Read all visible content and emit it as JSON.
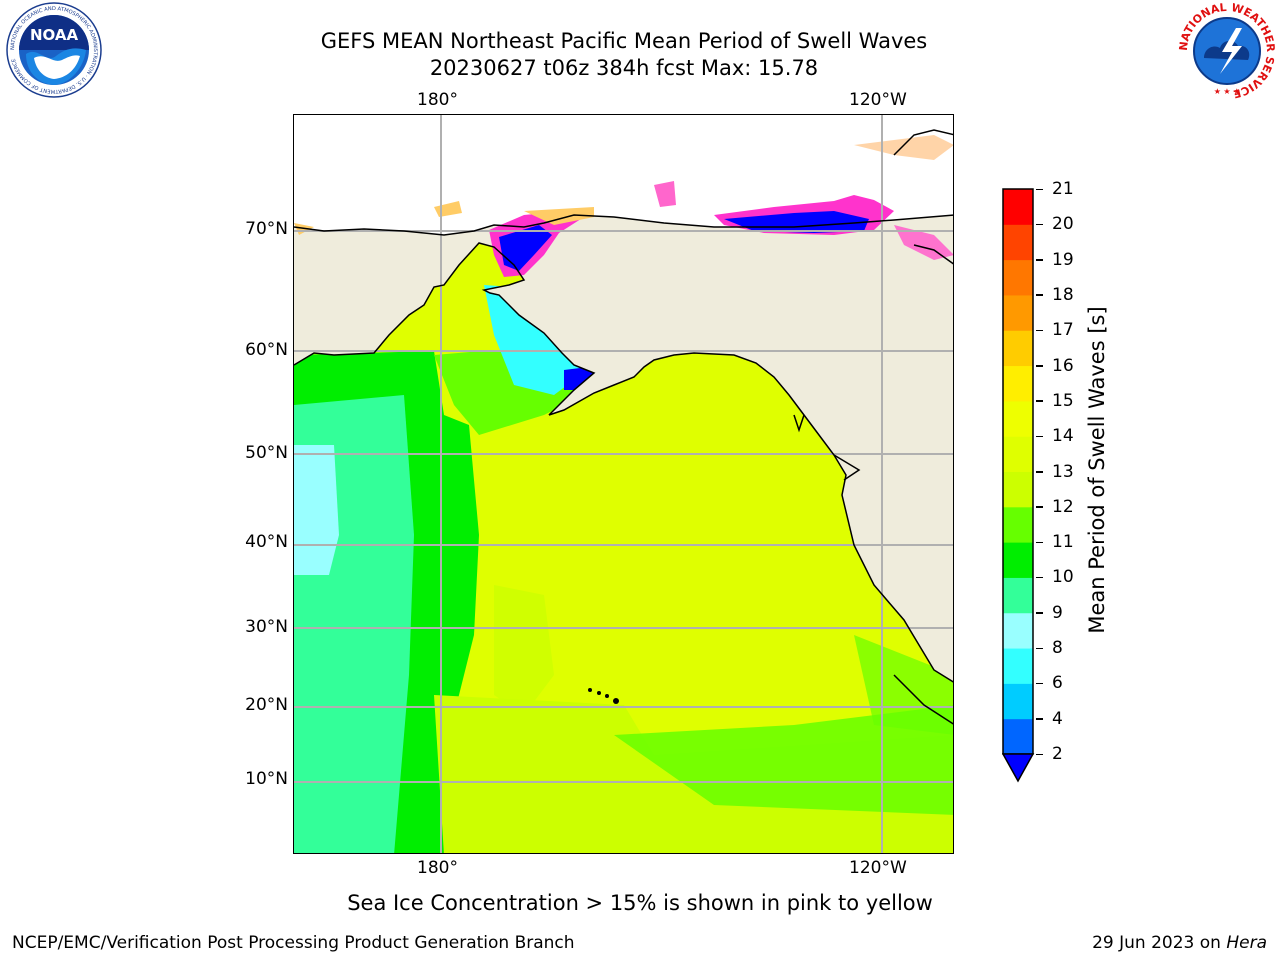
{
  "title": {
    "line1": "GEFS MEAN Northeast Pacific Mean Period of Swell Waves",
    "line2": "20230627 t06z 384h fcst   Max: 15.78"
  },
  "map": {
    "lon_labels_top": [
      "180°",
      "120°W"
    ],
    "lon_labels_bottom": [
      "180°",
      "120°W"
    ],
    "lat_labels": [
      "70°N",
      "60°N",
      "50°N",
      "40°N",
      "30°N",
      "20°N",
      "10°N"
    ],
    "colors": {
      "land": "#efecdc",
      "ocean_dominant": "#dfff00",
      "graticule": "#b0b0b0",
      "coastline": "#000000"
    }
  },
  "colorbar": {
    "label": "Mean Period of Swell Waves [s]",
    "tick_labels": [
      "2",
      "4",
      "6",
      "8",
      "9",
      "10",
      "11",
      "12",
      "13",
      "14",
      "15",
      "16",
      "17",
      "18",
      "19",
      "20",
      "21"
    ],
    "colors": [
      "#0066ff",
      "#00ccff",
      "#33ffff",
      "#99ffff",
      "#33ff99",
      "#00ee00",
      "#66ff00",
      "#ccff00",
      "#dfff00",
      "#eeff00",
      "#ffee00",
      "#ffcc00",
      "#ff9900",
      "#ff7700",
      "#ff4400",
      "#ff0000"
    ],
    "under_color": "#0000ff"
  },
  "note": "Sea Ice Concentration > 15% is shown in pink to yellow",
  "footer": {
    "left": "NCEP/EMC/Verification Post Processing Product Generation Branch",
    "right_date": "29 Jun 2023 on",
    "right_machine": "Hera"
  },
  "logos": {
    "noaa": "NOAA",
    "noaa_ring": "NATIONAL OCEANIC AND ATMOSPHERIC ADMINISTRATION · U.S. DEPARTMENT OF COMMERCE",
    "nws_ring": "NATIONAL WEATHER SERVICE"
  }
}
